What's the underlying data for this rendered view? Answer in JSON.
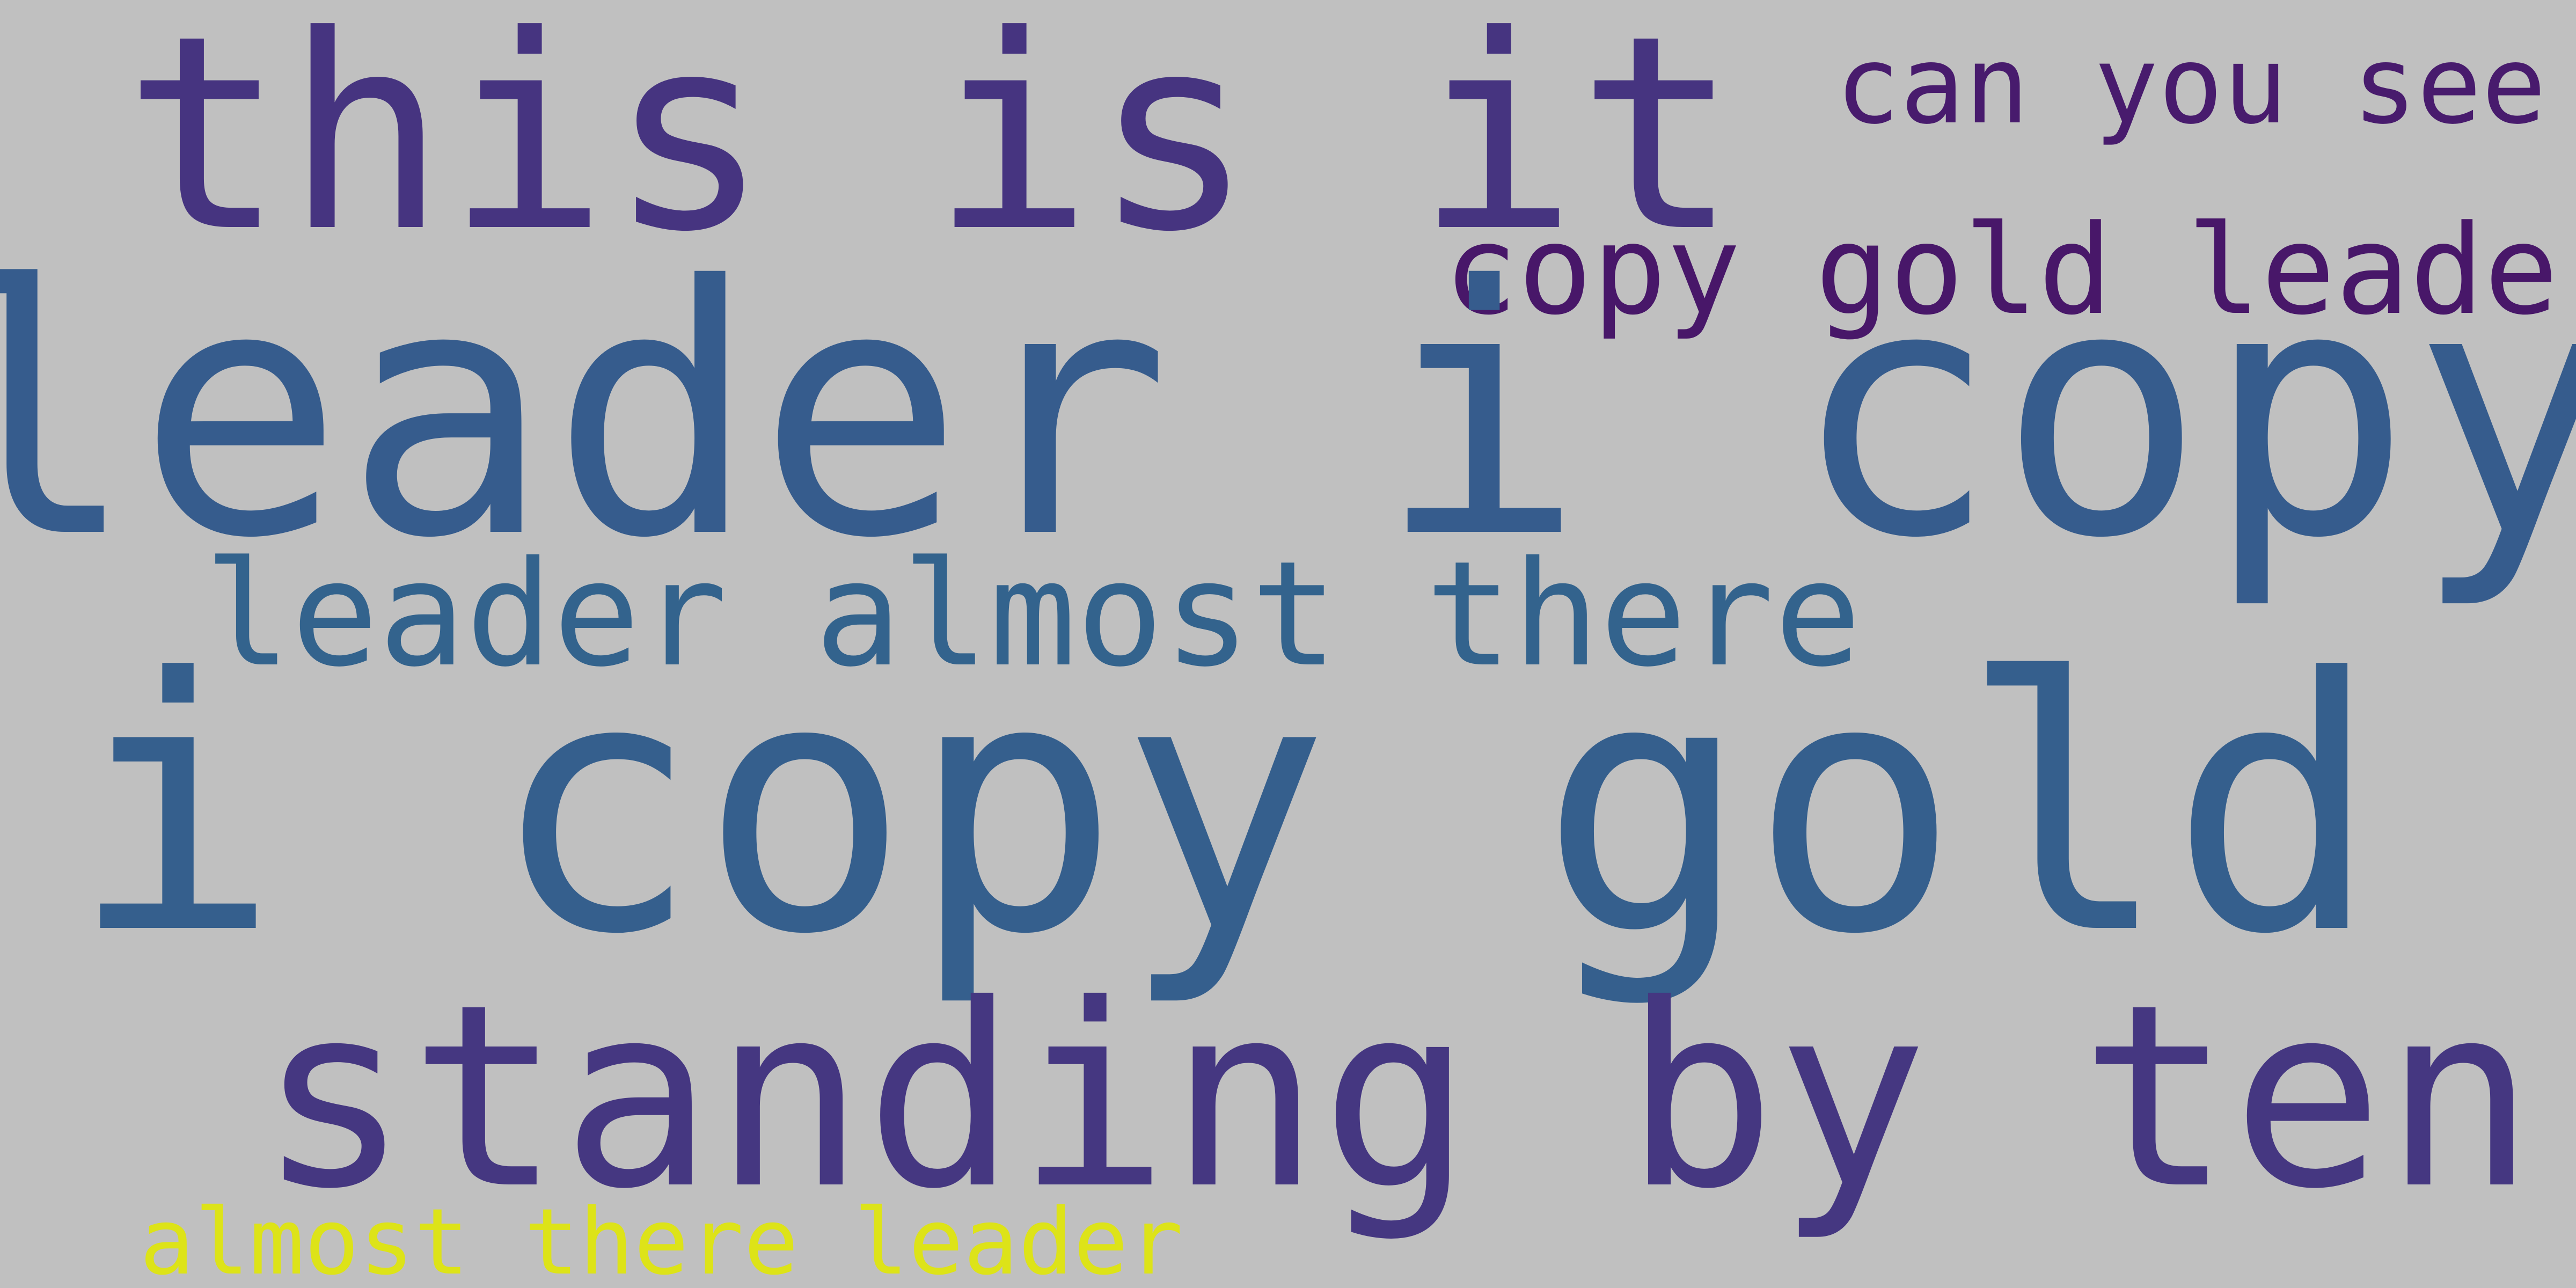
{
  "background_color": "#c0c0c0",
  "phrases": [
    {
      "text": "this is it",
      "color": "#463480"
    },
    {
      "text": "can you see",
      "color": "#481b6d"
    },
    {
      "text": "copy gold leader",
      "color": "#481769"
    },
    {
      "text": "leader i copy",
      "color": "#365c8d"
    },
    {
      "text": "leader almost there",
      "color": "#33638d"
    },
    {
      "text": "i copy gold",
      "color": "#355f8d"
    },
    {
      "text": "standing by ten",
      "color": "#453781"
    },
    {
      "text": "almost there leader",
      "color": "#dde318"
    }
  ]
}
